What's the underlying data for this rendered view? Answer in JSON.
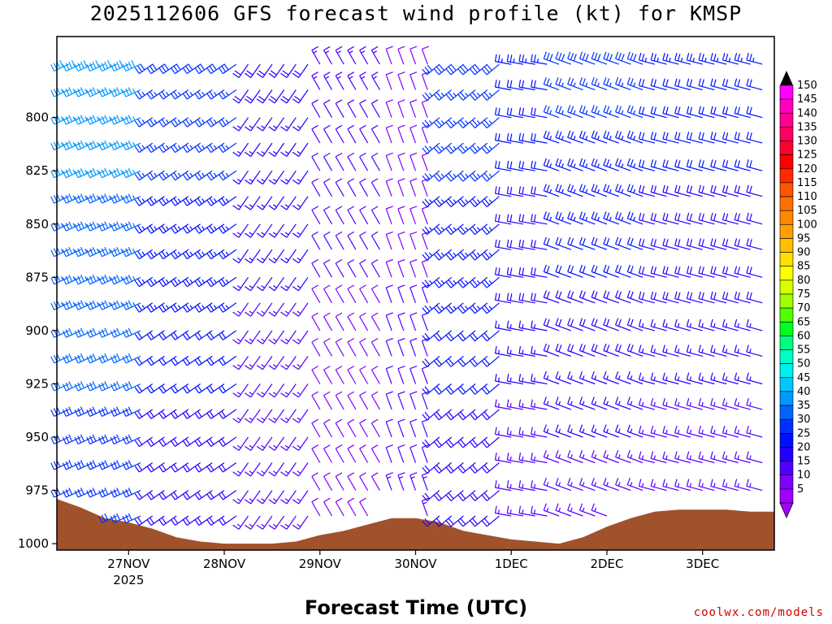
{
  "title": "2025112606 GFS forecast wind profile (kt) for KMSP",
  "footer": {
    "xlabel": "Forecast Time (UTC)",
    "credit": "coolwx.com/models"
  },
  "chart_data": {
    "type": "wind-barbs",
    "title": "2025112606 GFS forecast wind profile (kt) for KMSP",
    "xlabel": "Forecast Time (UTC)",
    "ylabel": "",
    "y_axis": {
      "ylim": [
        1003,
        762
      ],
      "ticks": [
        800,
        825,
        850,
        875,
        900,
        925,
        950,
        975,
        1000
      ]
    },
    "x_axis": {
      "xlim": [
        "2025-11-26 06",
        "2025-12-03 18"
      ],
      "tick_dates": [
        "2025-11-27",
        "2025-11-28",
        "2025-11-29",
        "2025-11-30",
        "2025-12-01",
        "2025-12-02",
        "2025-12-03"
      ],
      "tick_labels": [
        "27NOV",
        "28NOV",
        "29NOV",
        "30NOV",
        "1DEC",
        "2DEC",
        "3DEC"
      ],
      "sub_label": "2025"
    },
    "surface_pressure": {
      "colour": "#a0522d",
      "times": [
        "2025-11-26 06",
        "2025-11-26 12",
        "2025-11-26 18",
        "2025-11-27 00",
        "2025-11-27 06",
        "2025-11-27 12",
        "2025-11-27 18",
        "2025-11-28 00",
        "2025-11-28 06",
        "2025-11-28 12",
        "2025-11-28 18",
        "2025-11-29 00",
        "2025-11-29 06",
        "2025-11-29 12",
        "2025-11-29 18",
        "2025-11-30 00",
        "2025-11-30 06",
        "2025-11-30 12",
        "2025-11-30 18",
        "2025-12-01 00",
        "2025-12-01 06",
        "2025-12-01 12",
        "2025-12-01 18",
        "2025-12-02 00",
        "2025-12-02 06",
        "2025-12-02 12",
        "2025-12-02 18",
        "2025-12-03 00",
        "2025-12-03 06",
        "2025-12-03 12",
        "2025-12-03 18"
      ],
      "pressure_hpa": [
        979,
        983,
        988,
        990,
        993,
        997,
        999,
        1000,
        1000,
        1000,
        999,
        996,
        994,
        991,
        988,
        988,
        990,
        994,
        996,
        998,
        999,
        1000,
        997,
        992,
        988,
        985,
        984,
        984,
        984,
        985,
        985
      ]
    },
    "barbs": {
      "levels": [
        775,
        787,
        800,
        812,
        825,
        837,
        850,
        862,
        875,
        887,
        900,
        912,
        925,
        937,
        950,
        962,
        975,
        987
      ],
      "x_start": "2025-11-26 06",
      "x_step_hours": 3,
      "x_count": 62,
      "periods": [
        {
          "from": "2025-11-26 06",
          "direction_deg": 245,
          "speed_top_kt": 40,
          "speed_bottom_kt": 30
        },
        {
          "from": "2025-11-27 06",
          "direction_deg": 235,
          "speed_top_kt": 30,
          "speed_bottom_kt": 20
        },
        {
          "from": "2025-11-28 06",
          "direction_deg": 215,
          "speed_top_kt": 20,
          "speed_bottom_kt": 15
        },
        {
          "from": "2025-11-29 00",
          "direction_deg": 330,
          "speed_top_kt": 15,
          "speed_bottom_kt": 10
        },
        {
          "from": "2025-11-29 18",
          "direction_deg": 340,
          "speed_top_kt": 10,
          "speed_bottom_kt": 15
        },
        {
          "from": "2025-11-30 06",
          "direction_deg": 230,
          "speed_top_kt": 30,
          "speed_bottom_kt": 20
        },
        {
          "from": "2025-12-01 00",
          "direction_deg": 280,
          "speed_top_kt": 25,
          "speed_bottom_kt": 15
        },
        {
          "from": "2025-12-01 12",
          "direction_deg": 290,
          "speed_top_kt": 30,
          "speed_bottom_kt": 15
        },
        {
          "from": "2025-12-02 12",
          "direction_deg": 285,
          "speed_top_kt": 25,
          "speed_bottom_kt": 15
        }
      ]
    },
    "colorbar": {
      "labels": [
        150,
        145,
        140,
        135,
        130,
        125,
        120,
        115,
        110,
        105,
        100,
        95,
        90,
        85,
        80,
        75,
        70,
        65,
        60,
        55,
        50,
        45,
        40,
        35,
        30,
        25,
        20,
        15,
        10,
        5
      ],
      "colors": [
        "#ff00ff",
        "#ff00c0",
        "#ff0090",
        "#ff0060",
        "#ff0030",
        "#ff0000",
        "#ff2a00",
        "#ff5500",
        "#ff7000",
        "#ff8800",
        "#ffa000",
        "#ffc000",
        "#ffe000",
        "#ffff00",
        "#d8ff00",
        "#a0ff00",
        "#50ff00",
        "#00ff20",
        "#00ff80",
        "#00ffc8",
        "#00f0f0",
        "#00c8ff",
        "#0098ff",
        "#0064ff",
        "#0030ff",
        "#0010ff",
        "#2000ff",
        "#5000ff",
        "#8000ff",
        "#a000ff"
      ]
    }
  }
}
